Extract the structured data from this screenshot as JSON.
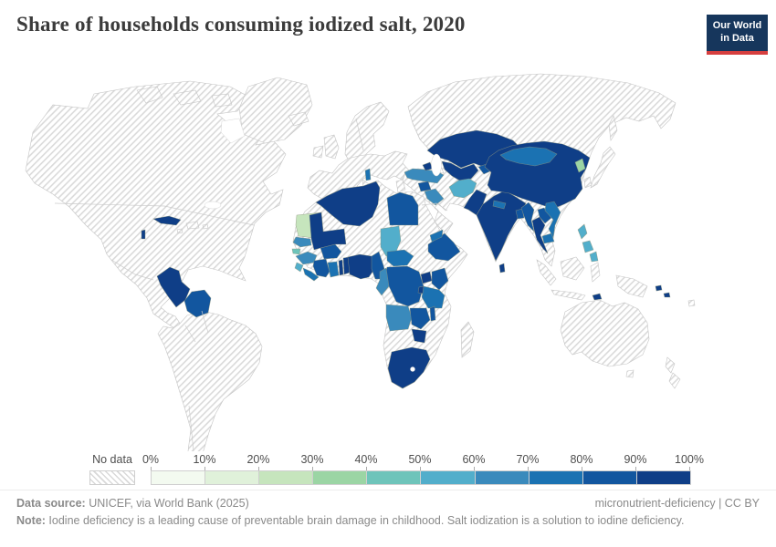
{
  "header": {
    "title": "Share of households consuming iodized salt, 2020",
    "logo_line1": "Our World",
    "logo_line2": "in Data",
    "logo_bg": "#16365c",
    "logo_accent": "#d63f3f"
  },
  "chart_data": {
    "type": "choropleth",
    "title": "Share of households consuming iodized salt, 2020",
    "legend": {
      "no_data_label": "No data",
      "tick_labels": [
        "0%",
        "10%",
        "20%",
        "30%",
        "40%",
        "50%",
        "60%",
        "70%",
        "80%",
        "90%",
        "100%"
      ],
      "bucket_ranges": [
        "0-10%",
        "10-20%",
        "20-30%",
        "30-40%",
        "40-50%",
        "50-60%",
        "60-70%",
        "70-80%",
        "80-90%",
        "90-100%"
      ],
      "bucket_colors": [
        "#f3faf0",
        "#e0f1da",
        "#c6e5bd",
        "#9bd5a4",
        "#6ec4ba",
        "#52aecb",
        "#3a8abc",
        "#1b72b2",
        "#12569f",
        "#0f3e87"
      ]
    },
    "countries": [
      {
        "id": "cuba",
        "name": "Cuba",
        "range": "90-100%",
        "bucket": 9
      },
      {
        "id": "belize",
        "name": "Belize",
        "range": "90-100%",
        "bucket": 9
      },
      {
        "id": "peru",
        "name": "Peru",
        "range": "90-100%",
        "bucket": 9
      },
      {
        "id": "bolivia",
        "name": "Bolivia",
        "range": "80-90%",
        "bucket": 8
      },
      {
        "id": "albania",
        "name": "Albania",
        "range": "70-80%",
        "bucket": 7
      },
      {
        "id": "mauritania",
        "name": "Mauritania",
        "range": "20-30%",
        "bucket": 2
      },
      {
        "id": "senegal",
        "name": "Senegal",
        "range": "60-70%",
        "bucket": 6
      },
      {
        "id": "guinea-bissau",
        "name": "Guinea-Bissau",
        "range": "40-50%",
        "bucket": 4
      },
      {
        "id": "guinea",
        "name": "Guinea",
        "range": "60-70%",
        "bucket": 6
      },
      {
        "id": "sierra-leone",
        "name": "Sierra Leone",
        "range": "50-60%",
        "bucket": 5
      },
      {
        "id": "liberia",
        "name": "Liberia",
        "range": "70-80%",
        "bucket": 7
      },
      {
        "id": "ivory-coast",
        "name": "Cote d'Ivoire",
        "range": "80-90%",
        "bucket": 8
      },
      {
        "id": "ghana",
        "name": "Ghana",
        "range": "70-80%",
        "bucket": 7
      },
      {
        "id": "togo",
        "name": "Togo",
        "range": "90-100%",
        "bucket": 9
      },
      {
        "id": "benin",
        "name": "Benin",
        "range": "90-100%",
        "bucket": 9
      },
      {
        "id": "burkina-faso",
        "name": "Burkina Faso",
        "range": "80-90%",
        "bucket": 8
      },
      {
        "id": "mali",
        "name": "Mali",
        "range": "90-100%",
        "bucket": 9
      },
      {
        "id": "algeria",
        "name": "Algeria",
        "range": "90-100%",
        "bucket": 9
      },
      {
        "id": "egypt",
        "name": "Egypt",
        "range": "80-90%",
        "bucket": 8
      },
      {
        "id": "chad",
        "name": "Chad",
        "range": "50-60%",
        "bucket": 5
      },
      {
        "id": "nigeria",
        "name": "Nigeria",
        "range": "90-100%",
        "bucket": 9
      },
      {
        "id": "cameroon",
        "name": "Cameroon",
        "range": "80-90%",
        "bucket": 8
      },
      {
        "id": "central-african-republic",
        "name": "Central African Republic",
        "range": "70-80%",
        "bucket": 7
      },
      {
        "id": "dr-congo",
        "name": "Democratic Republic of Congo",
        "range": "80-90%",
        "bucket": 8
      },
      {
        "id": "congo",
        "name": "Congo",
        "range": "60-70%",
        "bucket": 6
      },
      {
        "id": "uganda",
        "name": "Uganda",
        "range": "90-100%",
        "bucket": 9
      },
      {
        "id": "kenya",
        "name": "Kenya",
        "range": "80-90%",
        "bucket": 8
      },
      {
        "id": "tanzania",
        "name": "Tanzania",
        "range": "70-80%",
        "bucket": 7
      },
      {
        "id": "rwanda-burundi",
        "name": "Rwanda & Burundi",
        "range": "90-100%",
        "bucket": 9
      },
      {
        "id": "ethiopia",
        "name": "Ethiopia",
        "range": "80-90%",
        "bucket": 8
      },
      {
        "id": "eritrea",
        "name": "Eritrea",
        "range": "70-80%",
        "bucket": 7
      },
      {
        "id": "angola",
        "name": "Angola",
        "range": "60-70%",
        "bucket": 6
      },
      {
        "id": "zambia",
        "name": "Zambia",
        "range": "80-90%",
        "bucket": 8
      },
      {
        "id": "malawi",
        "name": "Malawi",
        "range": "80-90%",
        "bucket": 8
      },
      {
        "id": "zimbabwe",
        "name": "Zimbabwe",
        "range": "90-100%",
        "bucket": 9
      },
      {
        "id": "south-africa",
        "name": "South Africa",
        "range": "90-100%",
        "bucket": 9
      },
      {
        "id": "turkey",
        "name": "Turkey",
        "range": "60-70%",
        "bucket": 6
      },
      {
        "id": "syria",
        "name": "Syria",
        "range": "80-90%",
        "bucket": 8
      },
      {
        "id": "iraq",
        "name": "Iraq",
        "range": "60-70%",
        "bucket": 6
      },
      {
        "id": "azerbaijan",
        "name": "Azerbaijan",
        "range": "90-100%",
        "bucket": 9
      },
      {
        "id": "kazakhstan",
        "name": "Kazakhstan",
        "range": "90-100%",
        "bucket": 9
      },
      {
        "id": "uzbekistan-turkmenistan",
        "name": "Uzbekistan & Turkmenistan",
        "range": "90-100%",
        "bucket": 9
      },
      {
        "id": "kyrgyzstan-tajikistan",
        "name": "Kyrgyzstan & Tajikistan",
        "range": "80-90%",
        "bucket": 8
      },
      {
        "id": "afghanistan",
        "name": "Afghanistan",
        "range": "50-60%",
        "bucket": 5
      },
      {
        "id": "pakistan",
        "name": "Pakistan",
        "range": "90-100%",
        "bucket": 9
      },
      {
        "id": "india",
        "name": "India",
        "range": "90-100%",
        "bucket": 9
      },
      {
        "id": "nepal",
        "name": "Nepal",
        "range": "70-80%",
        "bucket": 7
      },
      {
        "id": "bangladesh",
        "name": "Bangladesh",
        "range": "80-90%",
        "bucket": 8
      },
      {
        "id": "sri-lanka",
        "name": "Sri Lanka",
        "range": "90-100%",
        "bucket": 9
      },
      {
        "id": "china",
        "name": "China",
        "range": "90-100%",
        "bucket": 9
      },
      {
        "id": "mongolia",
        "name": "Mongolia",
        "range": "70-80%",
        "bucket": 7
      },
      {
        "id": "north-korea",
        "name": "North Korea",
        "range": "30-40%",
        "bucket": 3
      },
      {
        "id": "myanmar",
        "name": "Myanmar",
        "range": "80-90%",
        "bucket": 8
      },
      {
        "id": "thailand",
        "name": "Thailand",
        "range": "90-100%",
        "bucket": 9
      },
      {
        "id": "laos",
        "name": "Laos",
        "range": "80-90%",
        "bucket": 8
      },
      {
        "id": "vietnam",
        "name": "Vietnam",
        "range": "70-80%",
        "bucket": 7
      },
      {
        "id": "cambodia",
        "name": "Cambodia",
        "range": "70-80%",
        "bucket": 7
      },
      {
        "id": "philippines",
        "name": "Philippines",
        "range": "50-60%",
        "bucket": 5
      },
      {
        "id": "timor-leste",
        "name": "Timor-Leste",
        "range": "90-100%",
        "bucket": 9
      },
      {
        "id": "solomon-islands",
        "name": "Solomon Islands",
        "range": "90-100%",
        "bucket": 9
      }
    ]
  },
  "footer": {
    "source_label": "Data source:",
    "source_text": " UNICEF, via World Bank (2025)",
    "attribution": "micronutrient-deficiency | CC BY",
    "note_label": "Note:",
    "note_text": " Iodine deficiency is a leading cause of preventable brain damage in childhood. Salt iodization is a solution to iodine deficiency."
  }
}
